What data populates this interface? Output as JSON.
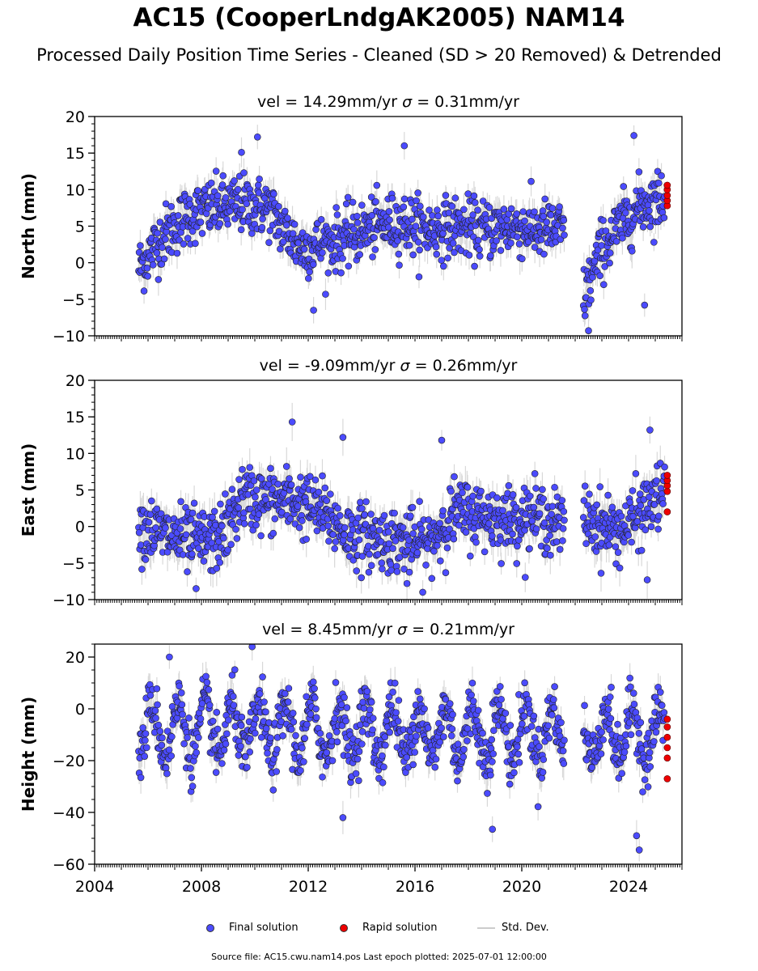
{
  "title": "AC15 (CooperLndgAK2005) NAM14",
  "subtitle": "Processed Daily Position Time Series - Cleaned (SD > 20 Removed) & Detrended",
  "legend": {
    "final": "Final solution",
    "rapid": "Rapid solution",
    "std": "Std. Dev."
  },
  "footer": "Source file: AC15.cwu.nam14.pos  Last epoch plotted: 2025-07-01 12:00:00",
  "colors": {
    "final": "#4b4bff",
    "rapid": "#ee0000",
    "std": "#c8c8c8",
    "edge": "#222222"
  },
  "chart_data": [
    {
      "type": "scatter",
      "component": "north",
      "title_prefix": "vel = ",
      "vel": "14.29mm/yr",
      "sigma_symbol": "σ",
      "sigma": " = 0.31mm/yr",
      "ylabel": "North (mm)",
      "ylim": [
        -10,
        20
      ],
      "yticks": [
        -10,
        -5,
        0,
        5,
        10,
        15,
        20
      ],
      "yminor": 1,
      "xlim": [
        2004,
        2026
      ],
      "gap": [
        2021.6,
        2022.3
      ],
      "trend": {
        "x": [
          2005.7,
          2006.5,
          2007.5,
          2008.5,
          2009.5,
          2010.5,
          2011.0,
          2011.7,
          2012.5,
          2013.5,
          2014.5,
          2015.5,
          2016.5,
          2017.5,
          2018.5,
          2019.5,
          2020.5,
          2021.6,
          2022.3,
          2023.0,
          2023.8,
          2024.5,
          2025.4
        ],
        "y": [
          -0.5,
          3.5,
          6.5,
          7.5,
          8,
          7.5,
          5,
          2,
          2.5,
          3.5,
          5,
          5.5,
          4.5,
          5,
          4.5,
          5,
          4.5,
          4.5,
          -5,
          2,
          5.5,
          8,
          9
        ]
      },
      "scatter_sd": 2.0,
      "outliers": [
        [
          2009.5,
          15.1
        ],
        [
          2010.1,
          17.2
        ],
        [
          2015.6,
          16.0
        ],
        [
          2024.2,
          17.4
        ],
        [
          2012.2,
          -6.5
        ],
        [
          2024.6,
          -5.8
        ],
        [
          2022.5,
          -9.3
        ]
      ],
      "rapid": {
        "x": 2025.45,
        "y": [
          7.8,
          8.5,
          9.2,
          10.0,
          10.6
        ]
      }
    },
    {
      "type": "scatter",
      "component": "east",
      "title_prefix": "vel = ",
      "vel": "-9.09mm/yr",
      "sigma_symbol": "σ",
      "sigma": " = 0.26mm/yr",
      "ylabel": "East (mm)",
      "ylim": [
        -10,
        20
      ],
      "yticks": [
        -10,
        -5,
        0,
        5,
        10,
        15,
        20
      ],
      "yminor": 1,
      "xlim": [
        2004,
        2026
      ],
      "gap": [
        2021.6,
        2022.3
      ],
      "trend": {
        "x": [
          2005.7,
          2006.5,
          2007.5,
          2008.5,
          2009.0,
          2009.5,
          2010.5,
          2011.5,
          2012.5,
          2013.5,
          2014.5,
          2015.5,
          2016.5,
          2017.0,
          2017.5,
          2018.5,
          2019.5,
          2020.5,
          2021.6,
          2022.3,
          2023.0,
          2023.8,
          2024.5,
          2025.4
        ],
        "y": [
          0,
          -1,
          -2,
          -2,
          0,
          4,
          3.5,
          3.5,
          2,
          -1,
          -1.5,
          -2,
          -2.5,
          0,
          2,
          1.5,
          1,
          1.5,
          0,
          1.5,
          0,
          -0.5,
          2,
          5
        ]
      },
      "scatter_sd": 2.2,
      "outliers": [
        [
          2011.4,
          14.3
        ],
        [
          2013.3,
          12.2
        ],
        [
          2017.0,
          11.8
        ],
        [
          2024.8,
          13.2
        ],
        [
          2007.8,
          -8.5
        ],
        [
          2015.7,
          -7.8
        ],
        [
          2024.7,
          -7.3
        ]
      ],
      "rapid": {
        "x": 2025.45,
        "y": [
          2.0,
          4.8,
          5.6,
          6.3,
          7.0
        ]
      }
    },
    {
      "type": "scatter",
      "component": "height",
      "title_prefix": "vel = ",
      "vel": "8.45mm/yr",
      "sigma_symbol": "σ",
      "sigma": " = 0.21mm/yr",
      "ylabel": "Height (mm)",
      "ylim": [
        -60,
        25
      ],
      "yticks": [
        -60,
        -40,
        -20,
        0,
        20
      ],
      "yminor": 5,
      "xlim": [
        2004,
        2026
      ],
      "xticks": [
        2004,
        2008,
        2012,
        2016,
        2020,
        2024
      ],
      "gap": [
        2021.6,
        2022.3
      ],
      "trend": {
        "x": [
          2005.7,
          2025.4
        ],
        "y": [
          -8,
          -10
        ]
      },
      "seasonal_amplitude": 10,
      "scatter_sd": 5.5,
      "outliers": [
        [
          2009.9,
          24.0
        ],
        [
          2006.8,
          20.0
        ],
        [
          2018.9,
          -46.5
        ],
        [
          2024.4,
          -54.5
        ],
        [
          2013.3,
          -42.0
        ],
        [
          2024.3,
          -49.0
        ]
      ],
      "rapid": {
        "x": 2025.45,
        "y": [
          -27,
          -19,
          -15,
          -11,
          -7,
          -4
        ]
      }
    }
  ]
}
